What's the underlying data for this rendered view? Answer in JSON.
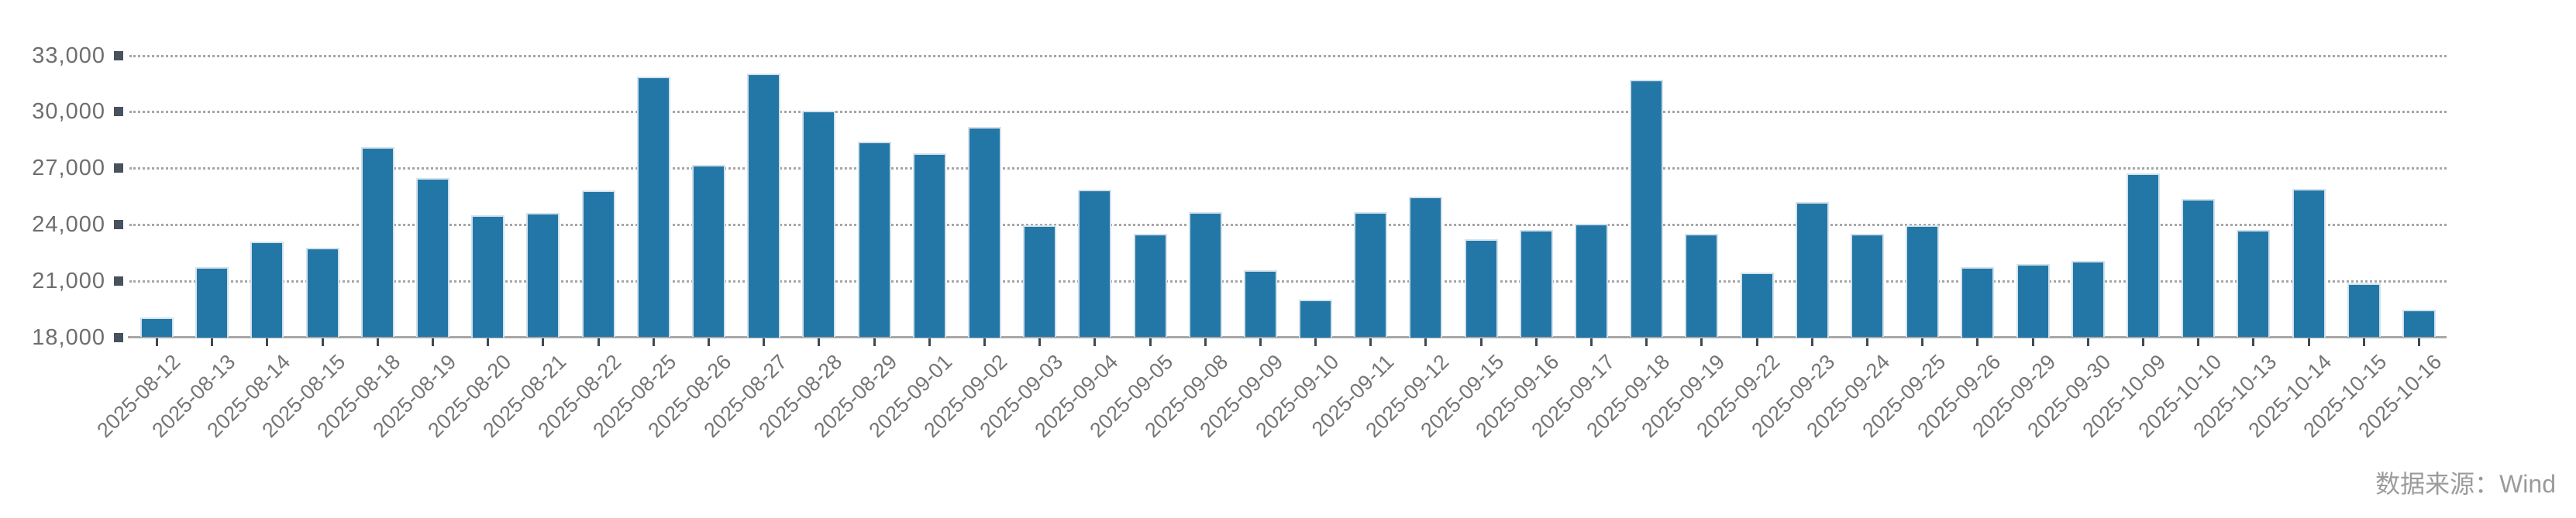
{
  "chart_data": {
    "type": "bar",
    "title": "",
    "xlabel": "",
    "ylabel": "",
    "legend": "none",
    "grid": "horizontal-dotted",
    "x_label_rotation": 45,
    "ylim": [
      18000,
      33000
    ],
    "y_ticks": [
      18000,
      21000,
      24000,
      27000,
      30000,
      33000
    ],
    "categories": [
      "2025-08-12",
      "2025-08-13",
      "2025-08-14",
      "2025-08-15",
      "2025-08-18",
      "2025-08-19",
      "2025-08-20",
      "2025-08-21",
      "2025-08-22",
      "2025-08-25",
      "2025-08-26",
      "2025-08-27",
      "2025-08-28",
      "2025-08-29",
      "2025-09-01",
      "2025-09-02",
      "2025-09-03",
      "2025-09-04",
      "2025-09-05",
      "2025-09-08",
      "2025-09-09",
      "2025-09-10",
      "2025-09-11",
      "2025-09-12",
      "2025-09-15",
      "2025-09-16",
      "2025-09-17",
      "2025-09-18",
      "2025-09-19",
      "2025-09-22",
      "2025-09-23",
      "2025-09-24",
      "2025-09-25",
      "2025-09-26",
      "2025-09-29",
      "2025-09-30",
      "2025-10-09",
      "2025-10-10",
      "2025-10-13",
      "2025-10-14",
      "2025-10-15",
      "2025-10-16"
    ],
    "values": [
      19050,
      21750,
      23100,
      22750,
      28100,
      26450,
      24500,
      24600,
      25800,
      31850,
      27150,
      32050,
      30050,
      28400,
      27800,
      29200,
      23950,
      25850,
      23500,
      24650,
      21550,
      20000,
      24650,
      25500,
      23200,
      23700,
      24050,
      31700,
      23500,
      21450,
      25200,
      23500,
      23950,
      21750,
      21900,
      22050,
      26700,
      25350,
      23700,
      25900,
      20850,
      19450
    ],
    "colors": {
      "bar": "#2277a6",
      "bar_border": "#d3e1ec",
      "gridline": "#a6a6a6",
      "axis_line": "#a8a8a8",
      "tick": "#3e4a54",
      "square_marker": "#47525d",
      "y_label": "#6e6e6e",
      "x_label": "#757575"
    }
  },
  "source_note": {
    "text": "数据来源：Wind"
  }
}
